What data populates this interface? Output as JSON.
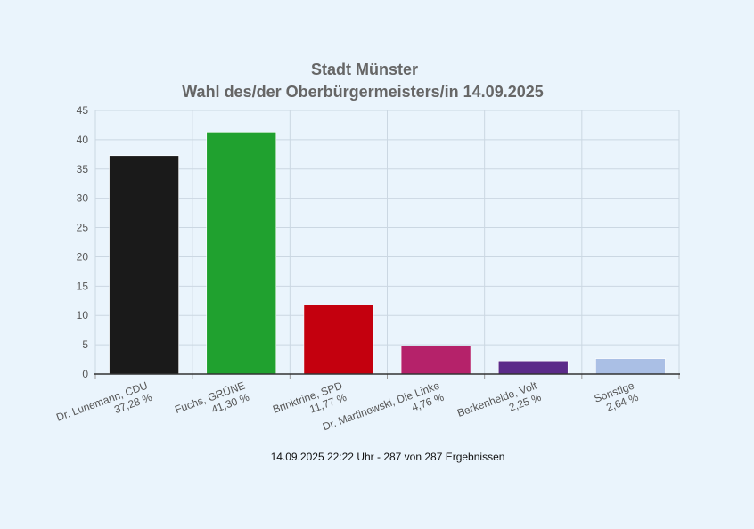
{
  "chart_data": {
    "type": "bar",
    "title": "Stadt Münster",
    "subtitle": "Wahl des/der Oberbürgermeisters/in 14.09.2025",
    "categories": [
      {
        "name": "Dr. Lunemann, CDU",
        "value_label": "37,28 %"
      },
      {
        "name": "Fuchs, GRÜNE",
        "value_label": "41,30 %"
      },
      {
        "name": "Brinktrine, SPD",
        "value_label": "11,77 %"
      },
      {
        "name": "Dr. Martinewski, Die Linke",
        "value_label": "4,76 %"
      },
      {
        "name": "Berkenheide, Volt",
        "value_label": "2,25 %"
      },
      {
        "name": "Sonstige",
        "value_label": "2,64 %"
      }
    ],
    "values": [
      37.28,
      41.3,
      11.77,
      4.76,
      2.25,
      2.64
    ],
    "colors": [
      "#1a1a1a",
      "#20a12f",
      "#c4000e",
      "#b5226a",
      "#5b2a89",
      "#aabfe5"
    ],
    "ylim": [
      0,
      45
    ],
    "yticks": [
      0,
      5,
      10,
      15,
      20,
      25,
      30,
      35,
      40,
      45
    ],
    "xlabel": "",
    "ylabel": "",
    "grid": true,
    "footer": "14.09.2025 22:22 Uhr - 287 von 287 Ergebnissen"
  }
}
